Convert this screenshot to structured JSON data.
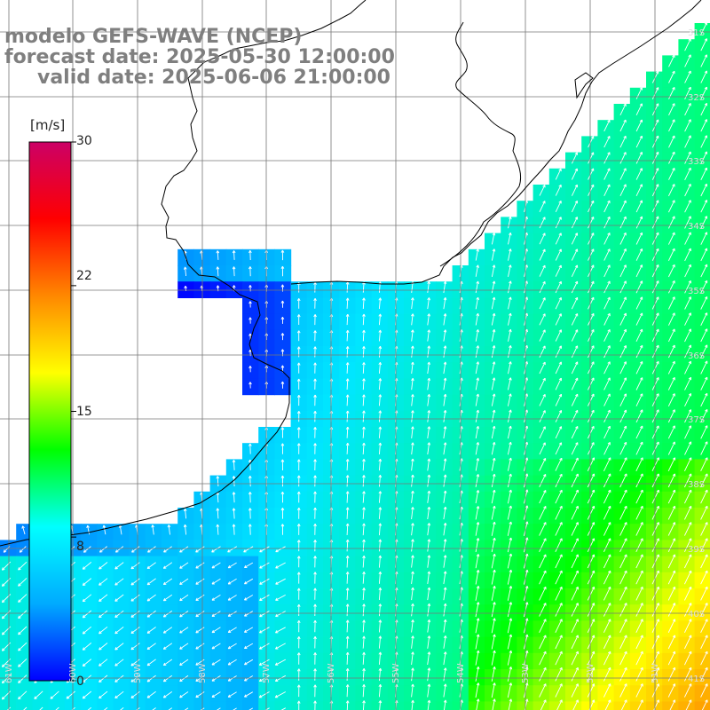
{
  "title": {
    "model": "modelo GEFS-WAVE (NCEP)",
    "forecast": "forecast date: 2025-05-30 12:00:00",
    "valid": "valid date: 2025-06-06 21:00:00"
  },
  "colorbar": {
    "unit": "[m/s]",
    "ticks": [
      "30",
      "22",
      "15",
      "8",
      "0"
    ],
    "tick_values": [
      30,
      22,
      15,
      8,
      0
    ],
    "min": 0,
    "max": 30,
    "colors": [
      "#0000ff",
      "#00aaff",
      "#00ffff",
      "#00ff00",
      "#ffff00",
      "#ff8800",
      "#ff0000",
      "#cc0066"
    ]
  },
  "map": {
    "type": "wind-speed-field",
    "lon_labels": [
      "61W",
      "60W",
      "59W",
      "58W",
      "57W",
      "56W",
      "55W",
      "54W",
      "53W",
      "52W",
      "51W"
    ],
    "lat_labels": [
      "31S",
      "32S",
      "33S",
      "34S",
      "35S",
      "36S",
      "37S",
      "38S",
      "39S",
      "40S",
      "41S"
    ],
    "land_color": "#ffffff",
    "grid_color": "#777777",
    "coast_color": "#000000",
    "arrow_color": "#ffffff"
  }
}
